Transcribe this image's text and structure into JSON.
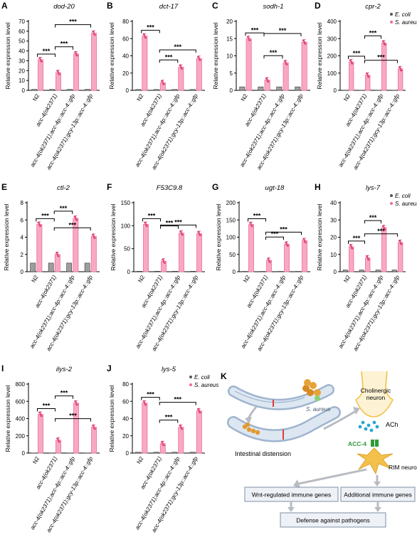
{
  "colors": {
    "ecoli": "#555555",
    "saureus": "#f06a9a",
    "saureus_fill": "#f7a9c4",
    "ecoli_fill": "#9e9e9e",
    "arrow_grey": "#b8bcc2",
    "box_stroke": "#7f8ea3",
    "acc4_green": "#2e9b3a",
    "neuron_yellow": "#f3c14b"
  },
  "legend": {
    "ecoli": "E. coli",
    "saureus": "S. aureus"
  },
  "strains_4": [
    "N2",
    "acc-4(ok2371)",
    "acc-4(ok2371);acc-4p::acc-4::gfp",
    "acc-4(ok2371);gcy-13p::acc-4::gfp"
  ],
  "sig": "***",
  "chart_data": [
    {
      "panel": "A",
      "type": "bar",
      "title": "dod-20",
      "ylabel": "Relative expression level",
      "ylim": [
        0,
        70
      ],
      "yticks": [
        0,
        10,
        20,
        30,
        40,
        50,
        60,
        70
      ],
      "series": [
        {
          "name": "E. coli",
          "values": [
            1,
            1,
            1,
            1
          ]
        },
        {
          "name": "S. aureus",
          "values": [
            31,
            18,
            37,
            58
          ]
        }
      ],
      "brackets": [
        [
          0,
          1,
          "***"
        ],
        [
          1,
          2,
          "***"
        ],
        [
          1,
          3,
          "***"
        ]
      ],
      "legend": false
    },
    {
      "panel": "B",
      "type": "bar",
      "title": "dct-17",
      "ylabel": "Relative expression level",
      "ylim": [
        0,
        80
      ],
      "yticks": [
        0,
        20,
        40,
        60,
        80
      ],
      "series": [
        {
          "name": "E. coli",
          "values": [
            1,
            1,
            1,
            1
          ]
        },
        {
          "name": "S. aureus",
          "values": [
            63,
            9,
            27,
            37
          ]
        }
      ],
      "brackets": [
        [
          0,
          1,
          "***"
        ],
        [
          1,
          2,
          "***"
        ],
        [
          1,
          3,
          "***"
        ]
      ],
      "legend": false
    },
    {
      "panel": "C",
      "type": "bar",
      "title": "sodh-1",
      "ylabel": "Relative expression level",
      "ylim": [
        0,
        20
      ],
      "yticks": [
        0,
        5,
        10,
        15,
        20
      ],
      "series": [
        {
          "name": "E. coli",
          "values": [
            1,
            1,
            1,
            1
          ]
        },
        {
          "name": "S. aureus",
          "values": [
            15,
            3,
            8,
            14
          ]
        }
      ],
      "brackets": [
        [
          0,
          1,
          "***"
        ],
        [
          1,
          2,
          "***"
        ],
        [
          1,
          3,
          "***"
        ]
      ],
      "legend": false
    },
    {
      "panel": "D",
      "type": "bar",
      "title": "cpr-2",
      "ylabel": "Relative expression level",
      "ylim": [
        0,
        400
      ],
      "yticks": [
        0,
        100,
        200,
        300,
        400
      ],
      "series": [
        {
          "name": "E. coli",
          "values": [
            1,
            1,
            1,
            1
          ]
        },
        {
          "name": "S. aureus",
          "values": [
            165,
            88,
            275,
            125
          ]
        }
      ],
      "brackets": [
        [
          0,
          1,
          "***"
        ],
        [
          1,
          2,
          "***"
        ],
        [
          1,
          3,
          "***"
        ]
      ],
      "legend": true
    },
    {
      "panel": "E",
      "type": "bar",
      "title": "ctl-2",
      "ylabel": "Relative expression level",
      "ylim": [
        0,
        8
      ],
      "yticks": [
        0,
        2,
        4,
        6,
        8
      ],
      "series": [
        {
          "name": "E. coli",
          "values": [
            1,
            1,
            1,
            1
          ]
        },
        {
          "name": "S. aureus",
          "values": [
            5.5,
            2,
            6.2,
            4.1
          ]
        }
      ],
      "brackets": [
        [
          0,
          1,
          "***"
        ],
        [
          1,
          2,
          "***"
        ],
        [
          1,
          3,
          "***"
        ]
      ],
      "legend": false
    },
    {
      "panel": "F",
      "type": "bar",
      "title": "F53C9.8",
      "ylabel": "Relative expression level",
      "ylim": [
        0,
        150
      ],
      "yticks": [
        0,
        50,
        100,
        150
      ],
      "series": [
        {
          "name": "E. coli",
          "values": [
            1,
            1,
            1,
            1
          ]
        },
        {
          "name": "S. aureus",
          "values": [
            103,
            23,
            84,
            83
          ]
        }
      ],
      "brackets": [
        [
          0,
          1,
          "***"
        ],
        [
          1,
          2,
          "***"
        ],
        [
          1,
          3,
          "***"
        ]
      ],
      "legend": false
    },
    {
      "panel": "G",
      "type": "bar",
      "title": "ugt-18",
      "ylabel": "Relative expression level",
      "ylim": [
        0,
        200
      ],
      "yticks": [
        0,
        50,
        100,
        150,
        200
      ],
      "series": [
        {
          "name": "E. coli",
          "values": [
            1,
            1,
            1,
            1
          ]
        },
        {
          "name": "S. aureus",
          "values": [
            137,
            33,
            80,
            90
          ]
        }
      ],
      "brackets": [
        [
          0,
          1,
          "***"
        ],
        [
          1,
          2,
          "***"
        ],
        [
          1,
          3,
          "***"
        ]
      ],
      "legend": false
    },
    {
      "panel": "H",
      "type": "bar",
      "title": "lys-7",
      "ylabel": "Relative expression level",
      "ylim": [
        0,
        40
      ],
      "yticks": [
        0,
        10,
        20,
        30,
        40
      ],
      "series": [
        {
          "name": "E. coli",
          "values": [
            1,
            1,
            1,
            1
          ]
        },
        {
          "name": "S. aureus",
          "values": [
            14.5,
            8,
            25.5,
            17
          ]
        }
      ],
      "brackets": [
        [
          0,
          1,
          "***"
        ],
        [
          1,
          2,
          "***"
        ],
        [
          1,
          3,
          "***"
        ]
      ],
      "legend": true
    },
    {
      "panel": "I",
      "type": "bar",
      "title": "ilys-2",
      "ylabel": "Relative expression level",
      "ylim": [
        0,
        800
      ],
      "yticks": [
        0,
        200,
        400,
        600,
        800
      ],
      "series": [
        {
          "name": "E. coli",
          "values": [
            1,
            1,
            1,
            1
          ]
        },
        {
          "name": "S. aureus",
          "values": [
            450,
            150,
            580,
            300
          ]
        }
      ],
      "brackets": [
        [
          0,
          1,
          "***"
        ],
        [
          1,
          2,
          "***"
        ],
        [
          1,
          3,
          "***"
        ]
      ],
      "legend": false
    },
    {
      "panel": "J",
      "type": "bar",
      "title": "lys-5",
      "ylabel": "Relative expression level",
      "ylim": [
        0,
        80
      ],
      "yticks": [
        0,
        20,
        40,
        60,
        80
      ],
      "series": [
        {
          "name": "E. coli",
          "values": [
            1,
            1,
            1,
            1
          ]
        },
        {
          "name": "S. aureus",
          "values": [
            58,
            11,
            30,
            49
          ]
        }
      ],
      "brackets": [
        [
          0,
          1,
          "***"
        ],
        [
          1,
          2,
          "***"
        ],
        [
          1,
          3,
          "***"
        ]
      ],
      "legend": true
    }
  ],
  "diagram": {
    "panel": "K",
    "bacteria_label": "S. aureus",
    "distension_label": "Intestinal distension",
    "cholinergic_label": "Cholinergic\nneuron",
    "ach_label": "ACh",
    "acc4_label": "ACC-4",
    "rim_label": "RIM neuron",
    "box_wnt": "Wnt-regulated immune genes",
    "box_additional": "Additional immune genes",
    "box_defense": "Defense against pathogens"
  }
}
